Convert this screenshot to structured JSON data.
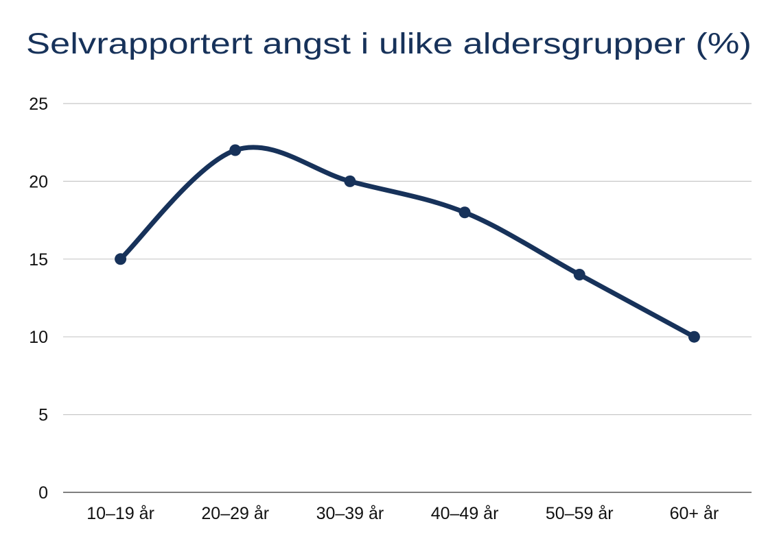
{
  "chart_data": {
    "type": "line",
    "title": "Selvrapportert angst i ulike aldersgrupper (%)",
    "xlabel": "",
    "ylabel": "",
    "categories": [
      "10–19 år",
      "20–29 år",
      "30–39 år",
      "40–49 år",
      "50–59 år",
      "60+ år"
    ],
    "values": [
      15,
      22,
      20,
      18,
      14,
      10
    ],
    "ylim": [
      0,
      25
    ],
    "yticks": [
      0,
      5,
      10,
      15,
      20,
      25
    ],
    "grid": true,
    "smooth": true,
    "markers": true,
    "legend": "none",
    "colors": {
      "line": "#17325a",
      "title": "#17325a",
      "grid": "#c8c8c8",
      "axis": "#555555"
    }
  }
}
